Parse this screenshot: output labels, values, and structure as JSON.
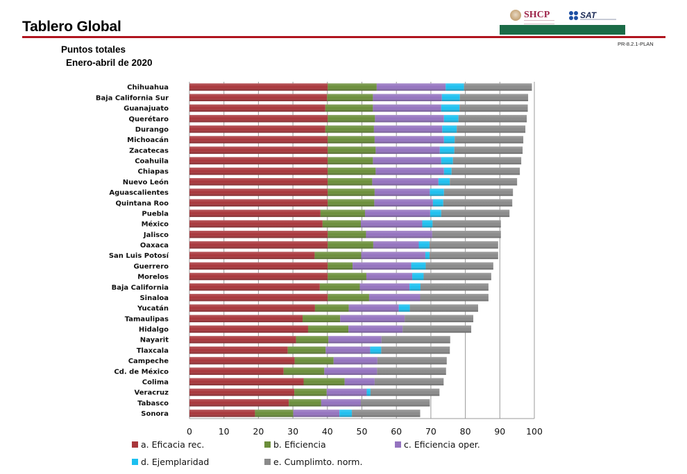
{
  "header": {
    "title": "Tablero Global",
    "code": "PR-8.2.1-PLAN",
    "logos": [
      {
        "name": "SHCP",
        "text": "SHCP"
      },
      {
        "name": "SAT",
        "text": "SAT"
      }
    ],
    "colors": {
      "rule": "#b0141e",
      "band": "#1b6b47"
    }
  },
  "chart_data": {
    "type": "bar",
    "orientation": "horizontal",
    "stacked": true,
    "title": "Puntos totales",
    "subtitle": "Enero-abril de 2020",
    "xlabel": "",
    "ylabel": "",
    "xlim": [
      0,
      100
    ],
    "xticks": [
      "0",
      "10",
      "20",
      "30",
      "40",
      "50",
      "60",
      "70",
      "80",
      "90",
      "100"
    ],
    "grid": true,
    "legend_position": "bottom",
    "categories": [
      "Chihuahua",
      "Baja California Sur",
      "Guanajuato",
      "Querétaro",
      "Durango",
      "Michoacán",
      "Zacatecas",
      "Coahuila",
      "Chiapas",
      "Nuevo León",
      "Aguascalientes",
      "Quintana Roo",
      "Puebla",
      "México",
      "Jalisco",
      "Oaxaca",
      "San Luis Potosí",
      "Guerrero",
      "Morelos",
      "Baja California",
      "Sinaloa",
      "Yucatán",
      "Tamaulipas",
      "Hidalgo",
      "Nayarit",
      "Tlaxcala",
      "Campeche",
      "Cd. de México",
      "Colima",
      "Veracruz",
      "Tabasco",
      "Sonora"
    ],
    "series": [
      {
        "name": "a. Eficacia rec.",
        "color": "#a8363b",
        "values": [
          40.1,
          39.9,
          39.4,
          40.1,
          39.4,
          40.1,
          40.1,
          40.1,
          40.1,
          40.1,
          40.1,
          40.1,
          38.0,
          38.6,
          40.1,
          40.1,
          36.3,
          40.1,
          40.1,
          37.8,
          40.1,
          36.4,
          32.8,
          34.4,
          30.9,
          28.5,
          30.5,
          27.3,
          33.1,
          30.4,
          28.8,
          19.0
        ]
      },
      {
        "name": "b. Eficiencia",
        "color": "#6b8e3a",
        "values": [
          14.2,
          13.3,
          13.8,
          13.7,
          14.1,
          13.6,
          13.9,
          13.1,
          13.9,
          12.9,
          13.6,
          13.5,
          12.9,
          11.1,
          11.1,
          13.2,
          13.5,
          7.2,
          11.2,
          11.6,
          12.0,
          9.8,
          10.9,
          11.7,
          9.4,
          11.0,
          11.3,
          11.8,
          11.9,
          9.4,
          9.4,
          11.1
        ]
      },
      {
        "name": "c. Eficiencia oper.",
        "color": "#9473bf",
        "values": [
          20.0,
          20.0,
          19.8,
          20.0,
          19.8,
          20.1,
          18.6,
          19.8,
          19.8,
          19.2,
          16.0,
          17.0,
          18.9,
          17.8,
          19.2,
          13.2,
          18.6,
          17.0,
          13.3,
          14.4,
          14.8,
          14.5,
          18.7,
          15.7,
          15.4,
          12.9,
          12.7,
          15.3,
          8.7,
          11.6,
          11.5,
          13.4
        ]
      },
      {
        "name": "d. Ejemplaridad",
        "color": "#1cc0f0",
        "values": [
          5.3,
          5.2,
          5.3,
          4.2,
          4.2,
          3.1,
          4.2,
          3.4,
          2.2,
          3.3,
          4.1,
          3.0,
          3.2,
          3.0,
          0.0,
          3.1,
          1.2,
          4.2,
          3.3,
          3.2,
          0.0,
          3.2,
          0.0,
          0.0,
          0.0,
          3.2,
          0.0,
          0.0,
          0.0,
          1.1,
          0.0,
          3.6
        ]
      },
      {
        "name": "e. Cumplimto. norm.",
        "color": "#8a8a8a",
        "values": [
          19.7,
          19.8,
          19.8,
          19.8,
          19.9,
          19.9,
          19.8,
          19.8,
          19.8,
          19.5,
          20.0,
          20.0,
          19.8,
          19.8,
          19.9,
          19.9,
          19.9,
          19.6,
          19.6,
          19.7,
          19.8,
          19.8,
          19.9,
          19.9,
          19.9,
          19.9,
          20.1,
          20.0,
          20.0,
          20.0,
          20.0,
          19.8
        ]
      }
    ]
  }
}
